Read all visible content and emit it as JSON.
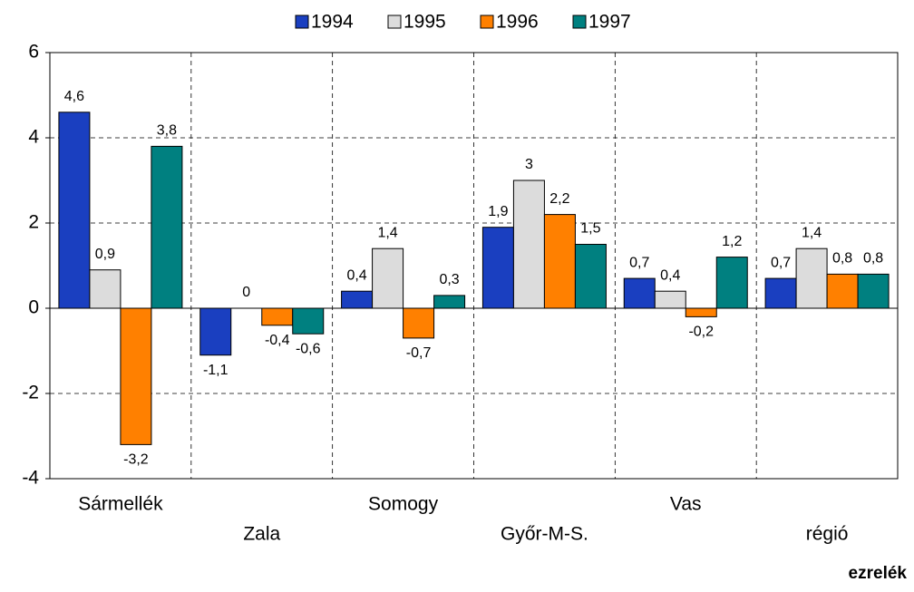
{
  "chart_data": {
    "type": "bar",
    "unit_label": "ezrelék",
    "categories": [
      "Sármellék",
      "Zala",
      "Somogy",
      "Győr-M-S.",
      "Vas",
      "régió"
    ],
    "series": [
      {
        "name": "1994",
        "color": "#1a3fc0",
        "values": [
          4.6,
          -1.1,
          0.4,
          1.9,
          0.7,
          0.7
        ],
        "value_labels": [
          "4,6",
          "-1,1",
          "0,4",
          "1,9",
          "0,7",
          "0,7"
        ]
      },
      {
        "name": "1995",
        "color": "#dcdcdc",
        "values": [
          0.9,
          0,
          1.4,
          3,
          0.4,
          1.4
        ],
        "value_labels": [
          "0,9",
          "0",
          "1,4",
          "3",
          "0,4",
          "1,4"
        ]
      },
      {
        "name": "1996",
        "color": "#ff8000",
        "values": [
          -3.2,
          -0.4,
          -0.7,
          2.2,
          -0.2,
          0.8
        ],
        "value_labels": [
          "-3,2",
          "-0,4",
          "-0,7",
          "2,2",
          "-0,2",
          "0,8"
        ]
      },
      {
        "name": "1997",
        "color": "#008080",
        "values": [
          3.8,
          -0.6,
          0.3,
          1.5,
          1.2,
          0.8
        ],
        "value_labels": [
          "3,8",
          "-0,6",
          "0,3",
          "1,5",
          "1,2",
          "0,8"
        ]
      }
    ],
    "ylim": [
      -4,
      6
    ],
    "yticks": [
      -4,
      -2,
      0,
      2,
      4,
      6
    ],
    "grid": true,
    "legend": "top"
  }
}
